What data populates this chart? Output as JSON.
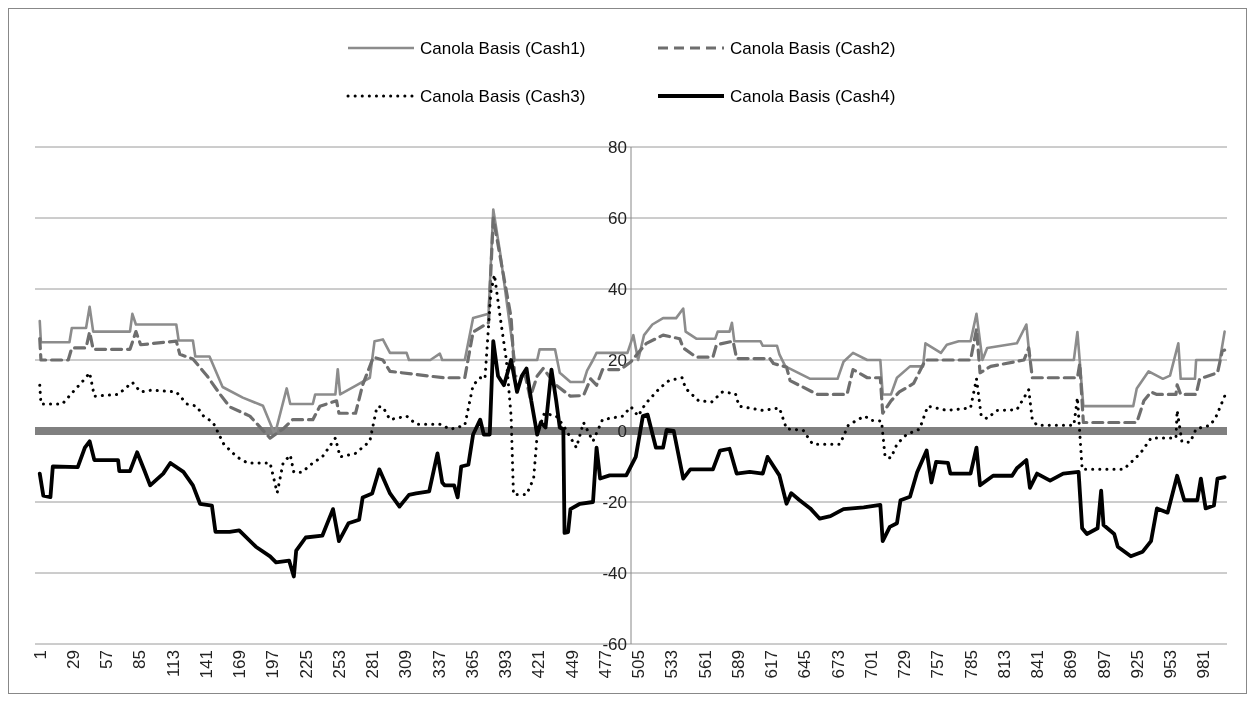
{
  "chart_data": {
    "type": "line",
    "legend": "top",
    "grid": "y",
    "xlim": [
      -3,
      1001
    ],
    "xticks": [
      1,
      29,
      57,
      85,
      113,
      141,
      169,
      197,
      225,
      253,
      281,
      309,
      337,
      365,
      393,
      421,
      449,
      477,
      505,
      533,
      561,
      589,
      617,
      645,
      673,
      701,
      729,
      757,
      785,
      813,
      841,
      869,
      897,
      925,
      953,
      981
    ],
    "ylim": [
      -60,
      80
    ],
    "yticks": [
      -60,
      -40,
      -20,
      0,
      20,
      40,
      60,
      80
    ],
    "series": [
      {
        "name": "Canola Basis (Cash1)",
        "color": "#8c8c8c",
        "line_style": "solid",
        "x": [
          1,
          2,
          26,
          28,
          40,
          43,
          46,
          77,
          79,
          82,
          116,
          118,
          130,
          132,
          144,
          155,
          172,
          189,
          199,
          209,
          212,
          231,
          233,
          250,
          252,
          254,
          268,
          279,
          283,
          290,
          296,
          310,
          312,
          330,
          338,
          340,
          359,
          366,
          379,
          383,
          389,
          395,
          401,
          420,
          422,
          435,
          439,
          448,
          459,
          462,
          467,
          470,
          496,
          501,
          505,
          510,
          517,
          526,
          537,
          543,
          545,
          554,
          570,
          572,
          582,
          584,
          586,
          608,
          610,
          622,
          624,
          629,
          650,
          673,
          678,
          686,
          698,
          709,
          711,
          718,
          723,
          734,
          745,
          747,
          760,
          765,
          775,
          785,
          790,
          795,
          799,
          824,
          832,
          835,
          872,
          875,
          880,
          922,
          925,
          935,
          947,
          953,
          960,
          962,
          974,
          975,
          995,
          999
        ],
        "values": [
          31,
          25,
          25,
          29,
          29,
          35,
          28,
          28,
          33,
          30,
          30,
          25.5,
          25.5,
          21,
          21,
          12.4,
          9.4,
          7.1,
          -1,
          12,
          7.6,
          7.6,
          10.3,
          10.3,
          17.4,
          10.3,
          12.9,
          15,
          25.3,
          25.8,
          22,
          22,
          20,
          20,
          21.8,
          20,
          20,
          31.8,
          33,
          62.4,
          49.7,
          34.7,
          20,
          20,
          23,
          23,
          16.4,
          13.8,
          13.8,
          17,
          20,
          22,
          22,
          27,
          20,
          27,
          30,
          31.8,
          31.8,
          34.5,
          28,
          26,
          26,
          28,
          28,
          30.5,
          25.3,
          25.3,
          24,
          24,
          21.6,
          18.2,
          14.7,
          14.7,
          19.5,
          22,
          20,
          20,
          10.3,
          10.3,
          15,
          18.2,
          18.2,
          24.7,
          22,
          24.3,
          25.3,
          25.3,
          33,
          20,
          23.4,
          24.7,
          30,
          20,
          20,
          27.9,
          7,
          7,
          12,
          16.8,
          14.7,
          15.6,
          24.7,
          14.7,
          14.7,
          20,
          20,
          28
        ]
      },
      {
        "name": "Canola Basis (Cash2)",
        "color": "#6e6e6e",
        "line_style": "dashed",
        "x": [
          1,
          2,
          25,
          28,
          40,
          43,
          46,
          77,
          82,
          86,
          116,
          119,
          130,
          142,
          153,
          161,
          178,
          195,
          206,
          214,
          231,
          237,
          251,
          253,
          267,
          273,
          282,
          290,
          296,
          341,
          359,
          366,
          379,
          383,
          391,
          398,
          401,
          410,
          414,
          420,
          425,
          436,
          448,
          459,
          465,
          470,
          475,
          490,
          499,
          505,
          512,
          526,
          540,
          543,
          554,
          568,
          571,
          585,
          588,
          616,
          619,
          630,
          633,
          656,
          681,
          686,
          698,
          709,
          711,
          718,
          725,
          737,
          747,
          785,
          790,
          793,
          802,
          830,
          834,
          837,
          875,
          877,
          880,
          925,
          931,
          937,
          942,
          958,
          959,
          962,
          975,
          978,
          993,
          997,
          999
        ],
        "values": [
          26,
          20,
          20,
          23.4,
          23.4,
          27.9,
          23,
          23,
          28,
          24.3,
          25.3,
          21.6,
          20.3,
          15.5,
          10.3,
          6.8,
          4.2,
          -2,
          0.6,
          3.2,
          3.2,
          7,
          8.5,
          5,
          5,
          13,
          20.8,
          20,
          16.8,
          15,
          15,
          27.9,
          30.5,
          60,
          45,
          32,
          15.5,
          15.5,
          9.4,
          15.5,
          17.6,
          12.9,
          9.8,
          10,
          14.7,
          12.9,
          17.3,
          17.3,
          19.5,
          22,
          24.7,
          27,
          26,
          23.4,
          20.8,
          20.8,
          24.3,
          25.3,
          20.4,
          20.4,
          19,
          18,
          14.2,
          10.3,
          10.3,
          17.3,
          15,
          15,
          5,
          8.5,
          11,
          13.4,
          20,
          20,
          28.7,
          16.4,
          18.2,
          20,
          23.4,
          15,
          15,
          19,
          2.4,
          2.4,
          8.5,
          11,
          10.3,
          10.3,
          13,
          10.3,
          10.3,
          14.7,
          16.4,
          22.5,
          22.8
        ]
      },
      {
        "name": "Canola Basis (Cash3)",
        "color": "#000000",
        "line_style": "dotted",
        "x": [
          1,
          2,
          20,
          29,
          39,
          43,
          47,
          67,
          79,
          86,
          95,
          116,
          125,
          133,
          139,
          147,
          156,
          167,
          176,
          195,
          201,
          206,
          212,
          215,
          222,
          231,
          239,
          250,
          254,
          267,
          279,
          285,
          290,
          296,
          310,
          318,
          338,
          347,
          359,
          366,
          372,
          376,
          381,
          384,
          388,
          394,
          398,
          400,
          411,
          417,
          420,
          426,
          436,
          442,
          453,
          459,
          467,
          475,
          492,
          499,
          505,
          511,
          523,
          531,
          542,
          545,
          556,
          567,
          576,
          587,
          590,
          610,
          624,
          630,
          644,
          652,
          675,
          682,
          690,
          696,
          701,
          710,
          713,
          718,
          723,
          731,
          742,
          749,
          765,
          785,
          790,
          794,
          799,
          807,
          824,
          834,
          837,
          841,
          872,
          875,
          879,
          914,
          928,
          937,
          958,
          959,
          963,
          970,
          975,
          987,
          992,
          999
        ],
        "values": [
          12.9,
          7.6,
          7.6,
          11,
          14.7,
          16.4,
          9.8,
          10.3,
          13.7,
          11,
          11.5,
          11,
          7.6,
          7,
          4.2,
          2.4,
          -3.7,
          -7.3,
          -9,
          -9,
          -17.4,
          -9,
          -6.8,
          -11.6,
          -11.6,
          -9,
          -7.3,
          -2,
          -7.3,
          -6.3,
          -2.9,
          6.8,
          6.8,
          3.2,
          4.2,
          1.9,
          1.9,
          0.5,
          1.6,
          12.9,
          15,
          14.7,
          39.2,
          44,
          34,
          20,
          4.2,
          -17.9,
          -17.9,
          -13.4,
          -1,
          5,
          4.2,
          1.6,
          -4.7,
          2.4,
          -2.9,
          3.2,
          4.2,
          6.8,
          4.2,
          7.6,
          12,
          14.2,
          15,
          12,
          8.5,
          8.2,
          11,
          10.5,
          7,
          5.8,
          6.5,
          0.6,
          0.2,
          -3.7,
          -3.7,
          1.6,
          3.2,
          4.2,
          3,
          2.8,
          -7.3,
          -7.6,
          -3.7,
          -1,
          0.5,
          7,
          5.8,
          6.5,
          14.7,
          4.2,
          3.5,
          5.8,
          6,
          11.6,
          3.2,
          1.6,
          1.6,
          9.4,
          -10.8,
          -10.8,
          -6.3,
          -2,
          -2,
          5.8,
          -3,
          -3.2,
          0.6,
          1.6,
          4.2,
          9.8
        ]
      },
      {
        "name": "Canola Basis (Cash4)",
        "color": "#000000",
        "line_style": "solid",
        "x": [
          1,
          4,
          10,
          12,
          33,
          39,
          43,
          47,
          67,
          68,
          77,
          83,
          89,
          94,
          105,
          111,
          122,
          130,
          136,
          146,
          149,
          161,
          169,
          183,
          195,
          200,
          211,
          215,
          217,
          225,
          239,
          248,
          253,
          261,
          270,
          273,
          281,
          287,
          296,
          304,
          312,
          318,
          329,
          336,
          340,
          342,
          350,
          353,
          356,
          362,
          366,
          372,
          375,
          380,
          383,
          387,
          392,
          398,
          403,
          407,
          411,
          415,
          420,
          423,
          427,
          432,
          436,
          439,
          442,
          443,
          446,
          448,
          456,
          467,
          470,
          473,
          481,
          495,
          503,
          509,
          513,
          520,
          526,
          529,
          535,
          543,
          549,
          568,
          574,
          582,
          588,
          599,
          610,
          614,
          624,
          630,
          634,
          641,
          650,
          658,
          667,
          678,
          695,
          709,
          711,
          717,
          723,
          726,
          734,
          740,
          748,
          752,
          756,
          766,
          768,
          785,
          790,
          793,
          804,
          820,
          824,
          832,
          835,
          841,
          852,
          863,
          876,
          879,
          883,
          892,
          895,
          897,
          906,
          909,
          920,
          930,
          937,
          942,
          951,
          959,
          965,
          976,
          979,
          983,
          990,
          993,
          999
        ],
        "values": [
          -12,
          -18.2,
          -18.6,
          -10,
          -10.2,
          -4.7,
          -2.9,
          -8.2,
          -8.2,
          -11.3,
          -11.3,
          -6,
          -11,
          -15.3,
          -12,
          -9,
          -11.5,
          -15.3,
          -20.5,
          -21,
          -28.4,
          -28.4,
          -28,
          -32.6,
          -35.3,
          -37,
          -36.5,
          -41,
          -33.7,
          -30,
          -29.5,
          -22,
          -31,
          -26,
          -25,
          -18.7,
          -17.6,
          -10.8,
          -17.6,
          -21.3,
          -18,
          -17.6,
          -17,
          -6.3,
          -14.5,
          -15.3,
          -15.3,
          -18.7,
          -10,
          -9.5,
          -1,
          3.2,
          -1,
          -1,
          25.3,
          15.5,
          12.9,
          20,
          11,
          15.5,
          17.6,
          8.5,
          -1,
          2.4,
          1,
          17.3,
          8.5,
          1,
          0.5,
          -28.7,
          -28.5,
          -22,
          -20.5,
          -20,
          -4.7,
          -13.4,
          -12.5,
          -12.5,
          -7.3,
          4.2,
          4.6,
          -4.7,
          -4.7,
          0.3,
          0,
          -13.4,
          -10.8,
          -10.8,
          -5.5,
          -5,
          -12,
          -11.5,
          -12,
          -7.3,
          -12.5,
          -20.5,
          -17.5,
          -19.5,
          -21.8,
          -24.7,
          -24,
          -22,
          -21.5,
          -20.8,
          -31,
          -27,
          -26,
          -19.5,
          -18.5,
          -11.6,
          -5.5,
          -14.5,
          -8.7,
          -9,
          -12,
          -12,
          -4.7,
          -15.3,
          -12.6,
          -12.6,
          -10.5,
          -8.2,
          -16,
          -12,
          -14,
          -12,
          -11.5,
          -27.4,
          -29,
          -27.4,
          -16.8,
          -26.5,
          -29,
          -32.6,
          -35.3,
          -34,
          -31,
          -21.8,
          -23,
          -12.6,
          -19.5,
          -19.5,
          -13.4,
          -21.8,
          -21,
          -13.4,
          -13
        ]
      }
    ]
  }
}
